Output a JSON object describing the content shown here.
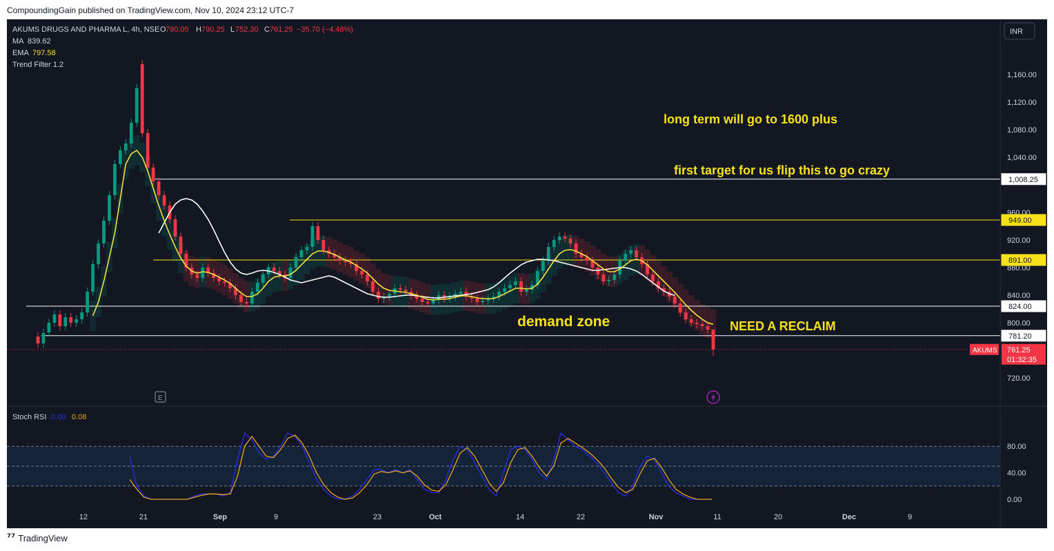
{
  "publisher_line": "CompoundingGain published on TradingView.com, Nov 10, 2024 23:12 UTC-7",
  "footer_brand": "TradingView",
  "currency_button": "INR",
  "legend": {
    "symbol": "AKUMS DRUGS AND PHARMA L, 4h, NSE",
    "o_label": "O",
    "o": "790.05",
    "h_label": "H",
    "h": "790.25",
    "l_label": "L",
    "l": "752.30",
    "c_label": "C",
    "c": "761.25",
    "change": "−35.70 (−4.48%)",
    "ma_label": "MA",
    "ma": "839.62",
    "ema_label": "EMA",
    "ema": "797.58",
    "trend_filter": "Trend Filter 1.2"
  },
  "rsi_legend": {
    "label": "Stoch RSI",
    "k": "0.00",
    "d": "0.08"
  },
  "price_ticks": [
    "1,160.00",
    "1,120.00",
    "1,080.00",
    "1,040.00",
    "960.00",
    "920.00",
    "880.00",
    "840.00",
    "800.00",
    "720.00"
  ],
  "time_ticks": [
    "12",
    "21",
    "Sep",
    "9",
    "23",
    "Oct",
    "14",
    "22",
    "Nov",
    "11",
    "20",
    "Dec",
    "9"
  ],
  "rsi_ticks": [
    "80.00",
    "40.00",
    "0.00"
  ],
  "price_labels": [
    {
      "text": "1,008.25",
      "price": 1008.25,
      "style": "white"
    },
    {
      "text": "949.00",
      "price": 949.0,
      "style": "yellow"
    },
    {
      "text": "891.00",
      "price": 891.0,
      "style": "yellow"
    },
    {
      "text": "824.00",
      "price": 824.0,
      "style": "white"
    },
    {
      "text": "781.20",
      "price": 781.2,
      "style": "white"
    }
  ],
  "last_price": {
    "symbol": "AKUMS",
    "price": "761.25",
    "countdown": "01:32:35",
    "value": 761.25
  },
  "annotations": {
    "long_term": "long term will go to 1600 plus",
    "first_target": "first target for us flip this to go crazy",
    "demand_zone": "demand zone",
    "reclaim": "NEED A RECLAIM"
  },
  "event_markers": {
    "earnings": "E"
  },
  "colors": {
    "background": "#131722",
    "up": "#089981",
    "down": "#f23645",
    "ema": "#f5e142",
    "ma": "#ffffff",
    "annotation": "#f7e11b",
    "k_line": "#2a2ee8",
    "d_line": "#e8a21f"
  },
  "chart_data": [
    {
      "type": "candlestick",
      "title": "AKUMS DRUGS AND PHARMA L, 4h, NSE",
      "ylim": [
        700,
        1185
      ],
      "x_range": [
        "Aug 2024",
        "Dec 2024"
      ],
      "x_ticks": [
        "12",
        "21",
        "Sep",
        "9",
        "23",
        "Oct",
        "14",
        "22",
        "Nov",
        "11",
        "20",
        "Dec",
        "9"
      ],
      "close_path": [
        770,
        785,
        800,
        812,
        795,
        808,
        800,
        805,
        815,
        845,
        885,
        915,
        948,
        985,
        1030,
        1050,
        1060,
        1090,
        1140,
        1075,
        1025,
        1005,
        985,
        970,
        950,
        925,
        900,
        880,
        870,
        865,
        880,
        872,
        865,
        860,
        858,
        850,
        840,
        830,
        828,
        845,
        858,
        870,
        880,
        875,
        870,
        865,
        880,
        895,
        905,
        910,
        940,
        920,
        905,
        900,
        895,
        890,
        888,
        885,
        875,
        870,
        860,
        845,
        835,
        838,
        842,
        850,
        848,
        845,
        840,
        835,
        830,
        828,
        833,
        840,
        835,
        838,
        842,
        845,
        838,
        835,
        830,
        832,
        835,
        838,
        845,
        850,
        855,
        860,
        845,
        848,
        855,
        875,
        890,
        910,
        920,
        925,
        922,
        915,
        900,
        895,
        890,
        880,
        870,
        860,
        862,
        870,
        890,
        900,
        905,
        895,
        885,
        870,
        860,
        850,
        845,
        838,
        828,
        815,
        805,
        800,
        798,
        795,
        790,
        761.25
      ],
      "open_path": [
        780,
        770,
        786,
        800,
        812,
        795,
        808,
        800,
        805,
        815,
        845,
        885,
        915,
        948,
        985,
        1030,
        1050,
        1060,
        1090,
        1175,
        1075,
        1025,
        1005,
        985,
        970,
        950,
        925,
        900,
        880,
        870,
        865,
        880,
        872,
        865,
        860,
        858,
        850,
        840,
        830,
        828,
        845,
        858,
        870,
        880,
        875,
        870,
        865,
        880,
        895,
        905,
        910,
        940,
        920,
        905,
        900,
        895,
        890,
        888,
        885,
        875,
        870,
        860,
        845,
        835,
        838,
        842,
        850,
        848,
        845,
        840,
        835,
        830,
        828,
        833,
        840,
        835,
        838,
        842,
        845,
        838,
        835,
        830,
        832,
        835,
        838,
        845,
        850,
        855,
        860,
        845,
        848,
        855,
        875,
        890,
        910,
        920,
        925,
        922,
        915,
        900,
        895,
        890,
        880,
        870,
        860,
        862,
        870,
        890,
        900,
        905,
        895,
        885,
        870,
        860,
        850,
        845,
        838,
        828,
        815,
        805,
        800,
        798,
        795,
        790.05
      ],
      "last": {
        "open": 790.05,
        "high": 790.25,
        "low": 752.3,
        "close": 761.25
      },
      "series": [
        {
          "name": "MA",
          "values": [
            null,
            null,
            null,
            null,
            null,
            null,
            null,
            null,
            null,
            null,
            null,
            null,
            null,
            null,
            null,
            null,
            null,
            null,
            null,
            null,
            null,
            null,
            930,
            945,
            960,
            972,
            978,
            980,
            978,
            972,
            962,
            950,
            935,
            918,
            902,
            888,
            878,
            872,
            870,
            872,
            875,
            876,
            875,
            873,
            870,
            866,
            862,
            860,
            858,
            860,
            862,
            864,
            866,
            868,
            866,
            862,
            858,
            854,
            850,
            846,
            842,
            840,
            838,
            837,
            837,
            838,
            839,
            840,
            840,
            839,
            838,
            837,
            836,
            836,
            837,
            838,
            839,
            840,
            841,
            842,
            844,
            846,
            848,
            852,
            858,
            865,
            872,
            878,
            884,
            888,
            890,
            892,
            892,
            891,
            890,
            888,
            886,
            884,
            882,
            880,
            878,
            876,
            876,
            877,
            878,
            879,
            880,
            880,
            878,
            875,
            870,
            864,
            858,
            852,
            846,
            842,
            839.62
          ]
        },
        {
          "name": "EMA",
          "values": [
            null,
            null,
            null,
            null,
            null,
            null,
            null,
            null,
            null,
            null,
            810,
            830,
            860,
            895,
            930,
            980,
            1030,
            1045,
            1050,
            1040,
            1020,
            995,
            970,
            948,
            928,
            910,
            894,
            882,
            875,
            872,
            874,
            873,
            870,
            866,
            862,
            857,
            850,
            843,
            838,
            838,
            842,
            850,
            860,
            866,
            868,
            868,
            870,
            876,
            884,
            892,
            900,
            904,
            904,
            902,
            899,
            895,
            891,
            888,
            883,
            878,
            872,
            864,
            856,
            850,
            847,
            846,
            845,
            844,
            842,
            840,
            837,
            834,
            833,
            834,
            834,
            835,
            837,
            839,
            839,
            838,
            836,
            835,
            835,
            835,
            838,
            842,
            846,
            850,
            850,
            849,
            850,
            856,
            866,
            878,
            890,
            900,
            905,
            906,
            904,
            900,
            896,
            890,
            884,
            878,
            874,
            874,
            878,
            884,
            890,
            892,
            890,
            884,
            876,
            868,
            860,
            852,
            844,
            835,
            826,
            818,
            811,
            805,
            800,
            797.58
          ]
        }
      ]
    },
    {
      "type": "line",
      "title": "Stoch RSI",
      "ylim": [
        0,
        100
      ],
      "series": [
        {
          "name": "K",
          "values": [
            65,
            20,
            5,
            0,
            0,
            0,
            0,
            0,
            0,
            5,
            8,
            8,
            8,
            5,
            10,
            60,
            100,
            90,
            70,
            60,
            65,
            80,
            100,
            95,
            80,
            55,
            30,
            15,
            5,
            0,
            0,
            5,
            15,
            30,
            45,
            45,
            40,
            45,
            40,
            45,
            30,
            15,
            10,
            10,
            30,
            60,
            80,
            75,
            55,
            35,
            15,
            5,
            40,
            75,
            80,
            75,
            60,
            40,
            30,
            60,
            100,
            90,
            80,
            75,
            65,
            55,
            40,
            25,
            10,
            5,
            20,
            50,
            65,
            60,
            40,
            20,
            10,
            5,
            0,
            0,
            0,
            0
          ]
        },
        {
          "name": "D",
          "values": [
            30,
            15,
            3,
            0,
            0,
            0,
            0,
            0,
            0,
            3,
            6,
            8,
            8,
            7,
            8,
            35,
            80,
            95,
            80,
            65,
            63,
            75,
            92,
            97,
            85,
            65,
            40,
            22,
            10,
            3,
            0,
            2,
            10,
            22,
            38,
            42,
            40,
            43,
            40,
            43,
            35,
            22,
            14,
            12,
            22,
            45,
            70,
            78,
            65,
            45,
            25,
            12,
            25,
            55,
            75,
            78,
            65,
            48,
            35,
            50,
            85,
            92,
            85,
            78,
            70,
            60,
            48,
            32,
            18,
            10,
            15,
            38,
            58,
            62,
            48,
            30,
            15,
            8,
            3,
            0,
            0,
            0.08
          ]
        }
      ]
    }
  ]
}
